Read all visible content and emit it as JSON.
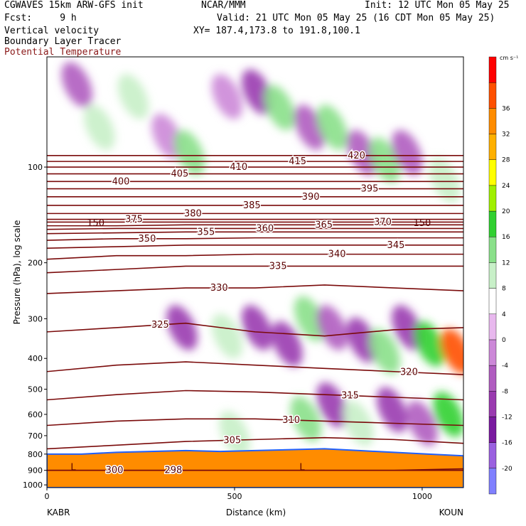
{
  "header": {
    "model": "CGWAVES 15km ARW-GFS init",
    "fcst": "Fcst:     9 h",
    "field1": "Vertical velocity",
    "field2": "Boundary Layer Tracer",
    "field3": "Potential Temperature",
    "org": "NCAR/MMM",
    "init": "Init: 12 UTC Mon 05 May 25",
    "valid": "Valid: 21 UTC Mon 05 May 25 (16 CDT Mon 05 May 25)",
    "xy": "XY= 187.4,173.8 to 191.8,100.1"
  },
  "colors": {
    "theta_line": "#7a0a0a",
    "ground": "#ff8c00",
    "background": "#ffffff"
  },
  "chart_data": {
    "type": "heatmap",
    "title": "",
    "xlabel": "Distance (km)",
    "ylabel": "Pressure (hPa), log scale",
    "x_range": [
      0,
      1110
    ],
    "y_range": [
      1020,
      45
    ],
    "y_scale": "log",
    "x_ticks": [
      0,
      500,
      1000
    ],
    "x_tick_labels": [
      "0",
      "500",
      "1000"
    ],
    "y_ticks": [
      100,
      200,
      300,
      400,
      500,
      600,
      700,
      800,
      900,
      1000
    ],
    "y_tick_labels": [
      "100",
      "200",
      "300",
      "400",
      "500",
      "600",
      "700",
      "800",
      "900",
      "1000"
    ],
    "endpoint_left": "KABR",
    "endpoint_right": "KOUN",
    "colorbar": {
      "unit": "cm s⁻¹",
      "levels": [
        -20,
        -16,
        -12,
        -8,
        -4,
        0,
        4,
        8,
        12,
        16,
        20,
        24,
        28,
        32,
        36
      ],
      "level_labels": [
        "-20",
        "-16",
        "-12",
        "-8",
        "-4",
        "0",
        "4",
        "8",
        "12",
        "16",
        "20",
        "24",
        "28",
        "32",
        "36"
      ],
      "colors": [
        "#8080ff",
        "#9a60e0",
        "#7a1aa0",
        "#9a3ab0",
        "#b05cc0",
        "#cc88d8",
        "#e8b8ee",
        "#ffffff",
        "#c8f0c8",
        "#8ae08a",
        "#30d030",
        "#a0f000",
        "#ffff00",
        "#ffb000",
        "#ff8c00",
        "#ff5000",
        "#ff0000"
      ]
    },
    "theta_contours": [
      {
        "value": 300,
        "label": "300",
        "p": [
          900,
          900,
          900,
          900,
          900,
          900,
          890
        ]
      },
      {
        "value": 298,
        "label": "298",
        "p": [
          900,
          900,
          900,
          900,
          900,
          900,
          900
        ]
      },
      {
        "value": 305,
        "label": "305",
        "p": [
          770,
          750,
          730,
          720,
          710,
          720,
          740
        ]
      },
      {
        "value": 310,
        "label": "310",
        "p": [
          650,
          630,
          620,
          620,
          630,
          640,
          650
        ]
      },
      {
        "value": 315,
        "label": "315",
        "p": [
          540,
          520,
          505,
          510,
          520,
          530,
          540
        ]
      },
      {
        "value": 320,
        "label": "320",
        "p": [
          440,
          420,
          410,
          420,
          430,
          440,
          450
        ]
      },
      {
        "value": 325,
        "label": "325",
        "p": [
          330,
          320,
          310,
          330,
          340,
          325,
          320
        ]
      },
      {
        "value": 330,
        "label": "330",
        "p": [
          250,
          245,
          240,
          240,
          235,
          240,
          245
        ]
      },
      {
        "value": 335,
        "label": "335",
        "p": [
          215,
          210,
          205,
          205,
          205,
          205,
          205
        ]
      },
      {
        "value": 340,
        "label": "340",
        "p": [
          195,
          190,
          190,
          188,
          188,
          188,
          188
        ]
      },
      {
        "value": 345,
        "label": "345",
        "p": [
          180,
          178,
          176,
          176,
          176,
          176,
          176
        ]
      },
      {
        "value": 350,
        "label": "350",
        "p": [
          170,
          168,
          168,
          167,
          167,
          167,
          167
        ]
      },
      {
        "value": 355,
        "label": "355",
        "p": [
          162,
          161,
          160,
          160,
          160,
          160,
          160
        ]
      },
      {
        "value": 360,
        "label": "360",
        "p": [
          157,
          156,
          156,
          156,
          156,
          156,
          156
        ]
      },
      {
        "value": 365,
        "label": "365",
        "p": [
          153,
          153,
          152,
          152,
          152,
          152,
          152
        ]
      },
      {
        "value": 370,
        "label": "370",
        "p": [
          149,
          149,
          149,
          149,
          149,
          149,
          149
        ]
      },
      {
        "value": 375,
        "label": "375",
        "p": [
          146,
          146,
          146,
          146,
          146,
          146,
          146
        ]
      },
      {
        "value": 380,
        "label": "380",
        "p": [
          140,
          140,
          140,
          140,
          140,
          140,
          140
        ]
      },
      {
        "value": 385,
        "label": "385",
        "p": [
          132,
          132,
          132,
          132,
          132,
          132,
          132
        ]
      },
      {
        "value": 390,
        "label": "390",
        "p": [
          124,
          124,
          124,
          124,
          124,
          124,
          124
        ]
      },
      {
        "value": 395,
        "label": "395",
        "p": [
          117,
          117,
          117,
          117,
          117,
          117,
          117
        ]
      },
      {
        "value": 400,
        "label": "400",
        "p": [
          111,
          111,
          111,
          111,
          111,
          111,
          111
        ]
      },
      {
        "value": 405,
        "label": "405",
        "p": [
          105,
          105,
          105,
          105,
          105,
          105,
          105
        ]
      },
      {
        "value": 410,
        "label": "410",
        "p": [
          100,
          100,
          100,
          100,
          100,
          100,
          100
        ]
      },
      {
        "value": 415,
        "label": "415",
        "p": [
          96,
          96,
          96,
          96,
          96,
          96,
          96
        ]
      },
      {
        "value": 420,
        "label": "420",
        "p": [
          92,
          92,
          92,
          92,
          92,
          92,
          92
        ]
      }
    ],
    "theta_x": [
      0,
      185,
      370,
      555,
      740,
      925,
      1110
    ],
    "other_labels": [
      {
        "text": "150",
        "x": 130,
        "p": 150
      },
      {
        "text": "150",
        "x": 1000,
        "p": 150
      },
      {
        "text": "L",
        "x": 70,
        "p": 880
      },
      {
        "text": "L",
        "x": 680,
        "p": 880
      }
    ],
    "velocity_cells": [
      {
        "x": 80,
        "p": 55,
        "v": -8
      },
      {
        "x": 140,
        "p": 75,
        "v": 8
      },
      {
        "x": 230,
        "p": 60,
        "v": 8
      },
      {
        "x": 320,
        "p": 80,
        "v": -4
      },
      {
        "x": 380,
        "p": 90,
        "v": 12
      },
      {
        "x": 480,
        "p": 60,
        "v": -4
      },
      {
        "x": 560,
        "p": 58,
        "v": -12
      },
      {
        "x": 620,
        "p": 65,
        "v": 12
      },
      {
        "x": 700,
        "p": 75,
        "v": -8
      },
      {
        "x": 760,
        "p": 75,
        "v": 12
      },
      {
        "x": 840,
        "p": 90,
        "v": -8
      },
      {
        "x": 900,
        "p": 95,
        "v": 12
      },
      {
        "x": 960,
        "p": 90,
        "v": -8
      },
      {
        "x": 1060,
        "p": 110,
        "v": 8
      },
      {
        "x": 360,
        "p": 320,
        "v": -12
      },
      {
        "x": 450,
        "p": 250,
        "v": 4
      },
      {
        "x": 480,
        "p": 340,
        "v": 8
      },
      {
        "x": 560,
        "p": 320,
        "v": -12
      },
      {
        "x": 640,
        "p": 360,
        "v": -12
      },
      {
        "x": 700,
        "p": 300,
        "v": 12
      },
      {
        "x": 760,
        "p": 320,
        "v": -8
      },
      {
        "x": 840,
        "p": 350,
        "v": -12
      },
      {
        "x": 900,
        "p": 380,
        "v": 12
      },
      {
        "x": 960,
        "p": 320,
        "v": -12
      },
      {
        "x": 1020,
        "p": 360,
        "v": 16
      },
      {
        "x": 1090,
        "p": 380,
        "v": 36
      },
      {
        "x": 690,
        "p": 620,
        "v": 12
      },
      {
        "x": 760,
        "p": 560,
        "v": -12
      },
      {
        "x": 830,
        "p": 640,
        "v": 8
      },
      {
        "x": 920,
        "p": 580,
        "v": -12
      },
      {
        "x": 1000,
        "p": 640,
        "v": -8
      },
      {
        "x": 1070,
        "p": 600,
        "v": 16
      },
      {
        "x": 600,
        "p": 690,
        "v": 4
      },
      {
        "x": 500,
        "p": 690,
        "v": 8
      }
    ],
    "terrain_p": [
      800,
      800,
      790,
      785,
      780,
      785,
      780,
      775,
      770,
      780,
      790,
      800,
      810
    ],
    "terrain_x": [
      0,
      92,
      185,
      277,
      370,
      462,
      555,
      647,
      740,
      832,
      925,
      1017,
      1110
    ]
  }
}
